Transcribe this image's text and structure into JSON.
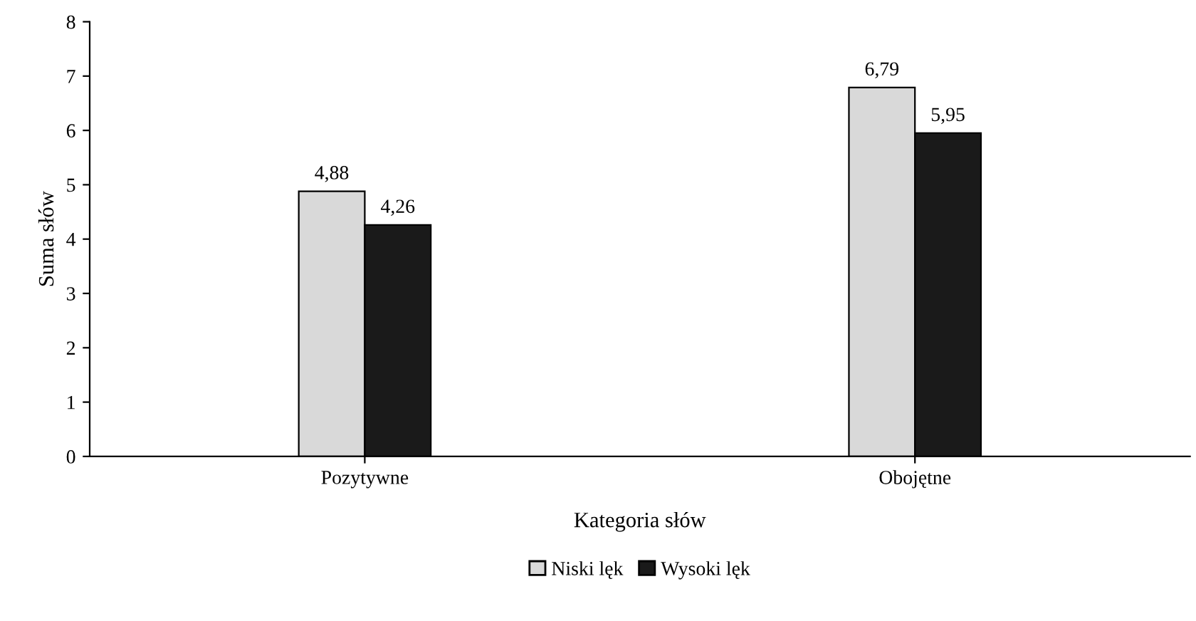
{
  "chart_data": {
    "type": "bar",
    "xlabel": "Kategoria słów",
    "ylabel": "Suma słów",
    "categories": [
      "Pozytywne",
      "Obojętne"
    ],
    "series": [
      {
        "name": "Niski lęk",
        "color": "#d9d9d9",
        "values": [
          4.88,
          6.79
        ],
        "value_labels": [
          "4,88",
          "6,79"
        ]
      },
      {
        "name": "Wysoki lęk",
        "color": "#1a1a1a",
        "values": [
          4.26,
          5.95
        ],
        "value_labels": [
          "4,26",
          "5,95"
        ]
      }
    ],
    "ylim": [
      0,
      8
    ],
    "yticks": [
      0,
      1,
      2,
      3,
      4,
      5,
      6,
      7,
      8
    ],
    "grid": false,
    "legend": "bottom"
  }
}
